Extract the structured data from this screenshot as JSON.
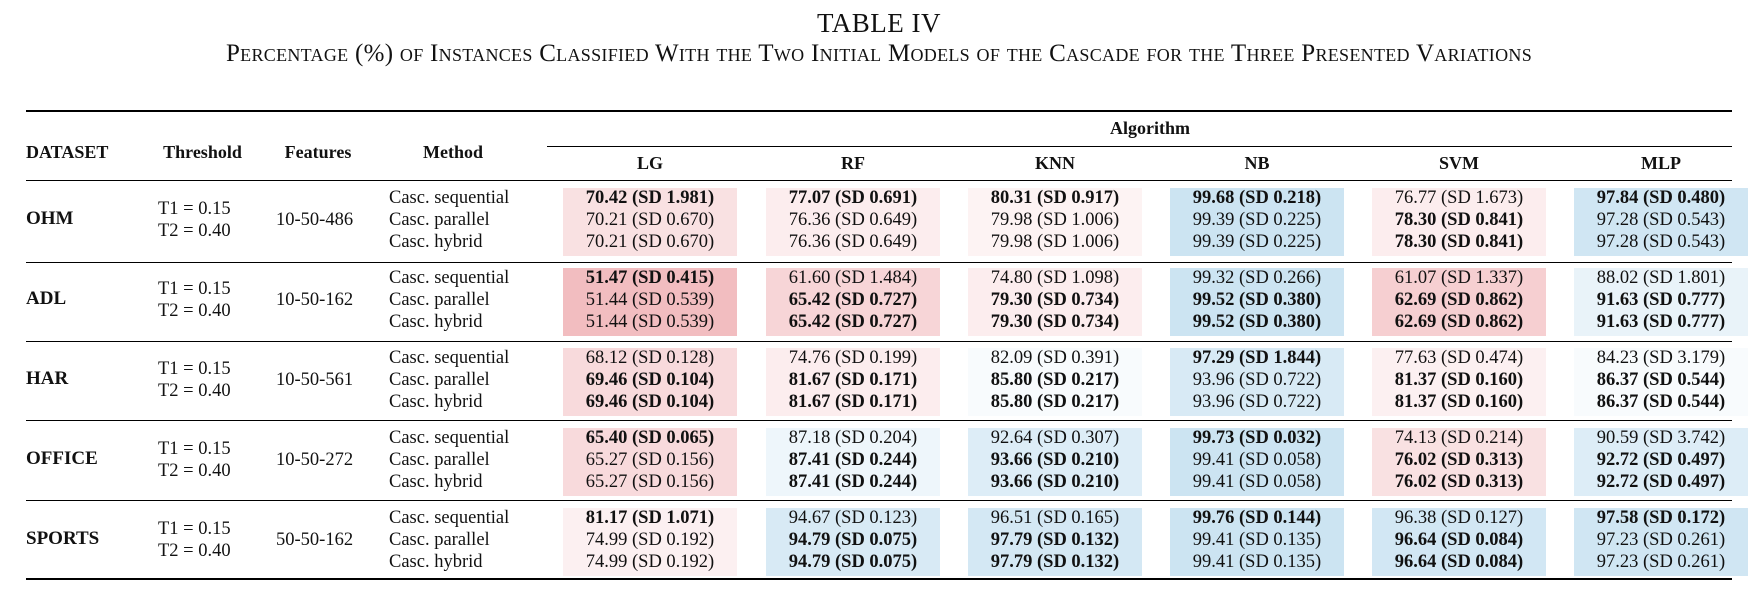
{
  "title": "TABLE IV",
  "subtitle": "Percentage (%) of Instances Classified With the Two Initial Models of the Cascade for the Three Presented Variations",
  "headers": {
    "dataset": "DATASET",
    "threshold": "Threshold",
    "features": "Features",
    "method": "Method",
    "algorithm": "Algorithm",
    "algorithms": [
      "LG",
      "RF",
      "KNN",
      "NB",
      "SVM",
      "MLP"
    ]
  },
  "colors": {
    "red": "#e8868c",
    "blue": "#8fc3e3"
  },
  "rows": [
    {
      "dataset": "OHM",
      "t1": "T1 = 0.15",
      "t2": "T2 = 0.40",
      "features": "10-50-486",
      "methods": [
        "Casc. sequential",
        "Casc. parallel",
        "Casc. hybrid"
      ],
      "values": [
        [
          "70.42 (SD 1.981)",
          "77.07 (SD 0.691)",
          "80.31 (SD 0.917)",
          "99.68 (SD 0.218)",
          "76.77 (SD 1.673)",
          "97.84 (SD 0.480)"
        ],
        [
          "70.21 (SD 0.670)",
          "76.36 (SD 0.649)",
          "79.98 (SD 1.006)",
          "99.39 (SD 0.225)",
          "78.30 (SD 0.841)",
          "97.28 (SD 0.543)"
        ],
        [
          "70.21 (SD 0.670)",
          "76.36 (SD 0.649)",
          "79.98 (SD 1.006)",
          "99.39 (SD 0.225)",
          "78.30 (SD 0.841)",
          "97.28 (SD 0.543)"
        ]
      ],
      "bold": [
        [
          1,
          1,
          1,
          1,
          0,
          1
        ],
        [
          0,
          0,
          0,
          0,
          1,
          0
        ],
        [
          0,
          0,
          0,
          0,
          1,
          0
        ]
      ],
      "shade": [
        [
          "r",
          0.25
        ],
        [
          "r",
          0.15
        ],
        [
          "r",
          0.1
        ],
        [
          "b",
          0.45
        ],
        [
          "r",
          0.15
        ],
        [
          "b",
          0.42
        ]
      ]
    },
    {
      "dataset": "ADL",
      "t1": "T1 = 0.15",
      "t2": "T2 = 0.40",
      "features": "10-50-162",
      "methods": [
        "Casc. sequential",
        "Casc. parallel",
        "Casc. hybrid"
      ],
      "values": [
        [
          "51.47 (SD 0.415)",
          "61.60 (SD 1.484)",
          "74.80 (SD 1.098)",
          "99.32 (SD 0.266)",
          "61.07 (SD 1.337)",
          "88.02 (SD 1.801)"
        ],
        [
          "51.44 (SD 0.539)",
          "65.42 (SD 0.727)",
          "79.30 (SD 0.734)",
          "99.52 (SD 0.380)",
          "62.69 (SD 0.862)",
          "91.63 (SD 0.777)"
        ],
        [
          "51.44 (SD 0.539)",
          "65.42 (SD 0.727)",
          "79.30 (SD 0.734)",
          "99.52 (SD 0.380)",
          "62.69 (SD 0.862)",
          "91.63 (SD 0.777)"
        ]
      ],
      "bold": [
        [
          1,
          0,
          0,
          0,
          0,
          0
        ],
        [
          0,
          1,
          1,
          1,
          1,
          1
        ],
        [
          0,
          1,
          1,
          1,
          1,
          1
        ]
      ],
      "shade": [
        [
          "r",
          0.55
        ],
        [
          "r",
          0.35
        ],
        [
          "r",
          0.15
        ],
        [
          "b",
          0.45
        ],
        [
          "r",
          0.4
        ],
        [
          "b",
          0.2
        ]
      ]
    },
    {
      "dataset": "HAR",
      "t1": "T1 = 0.15",
      "t2": "T2 = 0.40",
      "features": "10-50-561",
      "methods": [
        "Casc. sequential",
        "Casc. parallel",
        "Casc. hybrid"
      ],
      "values": [
        [
          "68.12 (SD 0.128)",
          "74.76 (SD 0.199)",
          "82.09 (SD 0.391)",
          "97.29 (SD 1.844)",
          "77.63 (SD 0.474)",
          "84.23 (SD 3.179)"
        ],
        [
          "69.46 (SD 0.104)",
          "81.67 (SD 0.171)",
          "85.80 (SD 0.217)",
          "93.96 (SD 0.722)",
          "81.37 (SD 0.160)",
          "86.37 (SD 0.544)"
        ],
        [
          "69.46 (SD 0.104)",
          "81.67 (SD 0.171)",
          "85.80 (SD 0.217)",
          "93.96 (SD 0.722)",
          "81.37 (SD 0.160)",
          "86.37 (SD 0.544)"
        ]
      ],
      "bold": [
        [
          0,
          0,
          0,
          1,
          0,
          0
        ],
        [
          1,
          1,
          1,
          0,
          1,
          1
        ],
        [
          1,
          1,
          1,
          0,
          1,
          1
        ]
      ],
      "shade": [
        [
          "r",
          0.3
        ],
        [
          "r",
          0.15
        ],
        [
          "b",
          0.06
        ],
        [
          "b",
          0.35
        ],
        [
          "r",
          0.12
        ],
        [
          "b",
          0.06
        ]
      ]
    },
    {
      "dataset": "OFFICE",
      "t1": "T1 = 0.15",
      "t2": "T2 = 0.40",
      "features": "10-50-272",
      "methods": [
        "Casc. sequential",
        "Casc. parallel",
        "Casc. hybrid"
      ],
      "values": [
        [
          "65.40 (SD 0.065)",
          "87.18 (SD 0.204)",
          "92.64 (SD 0.307)",
          "99.73 (SD 0.032)",
          "74.13 (SD 0.214)",
          "90.59 (SD 3.742)"
        ],
        [
          "65.27 (SD 0.156)",
          "87.41 (SD 0.244)",
          "93.66 (SD 0.210)",
          "99.41 (SD 0.058)",
          "76.02 (SD 0.313)",
          "92.72 (SD 0.497)"
        ],
        [
          "65.27 (SD 0.156)",
          "87.41 (SD 0.244)",
          "93.66 (SD 0.210)",
          "99.41 (SD 0.058)",
          "76.02 (SD 0.313)",
          "92.72 (SD 0.497)"
        ]
      ],
      "bold": [
        [
          1,
          0,
          0,
          1,
          0,
          0
        ],
        [
          0,
          1,
          1,
          0,
          1,
          1
        ],
        [
          0,
          1,
          1,
          0,
          1,
          1
        ]
      ],
      "shade": [
        [
          "r",
          0.3
        ],
        [
          "b",
          0.15
        ],
        [
          "b",
          0.3
        ],
        [
          "b",
          0.45
        ],
        [
          "r",
          0.25
        ],
        [
          "b",
          0.3
        ]
      ]
    },
    {
      "dataset": "SPORTS",
      "t1": "T1 = 0.15",
      "t2": "T2 = 0.40",
      "features": "50-50-162",
      "methods": [
        "Casc. sequential",
        "Casc. parallel",
        "Casc. hybrid"
      ],
      "values": [
        [
          "81.17 (SD 1.071)",
          "94.67 (SD 0.123)",
          "96.51 (SD 0.165)",
          "99.76 (SD 0.144)",
          "96.38 (SD 0.127)",
          "97.58 (SD 0.172)"
        ],
        [
          "74.99 (SD 0.192)",
          "94.79 (SD 0.075)",
          "97.79 (SD 0.132)",
          "99.41 (SD 0.135)",
          "96.64 (SD 0.084)",
          "97.23 (SD 0.261)"
        ],
        [
          "74.99 (SD 0.192)",
          "94.79 (SD 0.075)",
          "97.79 (SD 0.132)",
          "99.41 (SD 0.135)",
          "96.64 (SD 0.084)",
          "97.23 (SD 0.261)"
        ]
      ],
      "bold": [
        [
          1,
          0,
          0,
          1,
          0,
          1
        ],
        [
          0,
          1,
          1,
          0,
          1,
          0
        ],
        [
          0,
          1,
          1,
          0,
          1,
          0
        ]
      ],
      "shade": [
        [
          "r",
          0.12
        ],
        [
          "b",
          0.35
        ],
        [
          "b",
          0.38
        ],
        [
          "b",
          0.45
        ],
        [
          "b",
          0.4
        ],
        [
          "b",
          0.42
        ]
      ]
    }
  ]
}
